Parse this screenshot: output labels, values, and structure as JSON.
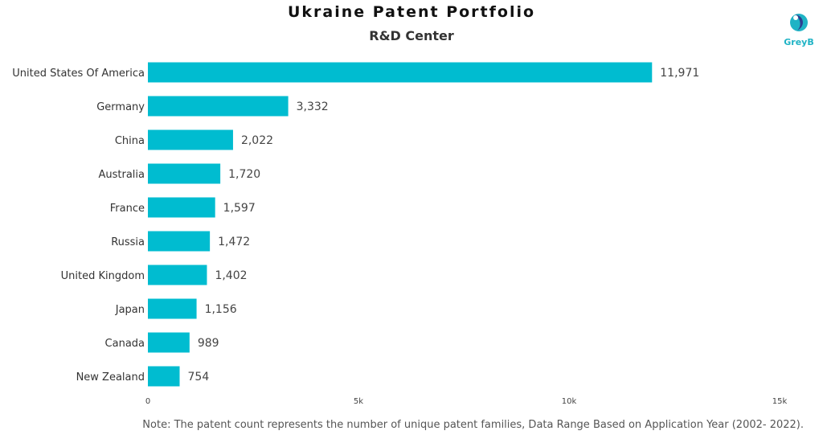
{
  "colors": {
    "bar": "#00bcd0",
    "logo": "#1fb3c5"
  },
  "logo": {
    "text": "GreyB",
    "icon": "greyb-logo-icon"
  },
  "note": "Note: The patent count represents the number of unique patent families, Data Range Based on Application Year (2002- 2022).",
  "chart_data": {
    "type": "bar",
    "orientation": "horizontal",
    "title": "Ukraine Patent Portfolio",
    "subtitle": "R&D Center",
    "categories": [
      "United States Of America",
      "Germany",
      "China",
      "Australia",
      "France",
      "Russia",
      "United Kingdom",
      "Japan",
      "Canada",
      "New Zealand"
    ],
    "values": [
      11971,
      3332,
      2022,
      1720,
      1597,
      1472,
      1402,
      1156,
      989,
      754
    ],
    "value_labels": [
      "11,971",
      "3,332",
      "2,022",
      "1,720",
      "1,597",
      "1,472",
      "1,402",
      "1,156",
      "989",
      "754"
    ],
    "xlim": [
      0,
      15000
    ],
    "x_ticks": [
      0,
      5000,
      10000,
      15000
    ],
    "x_tick_labels": [
      "0",
      "5k",
      "10k",
      "15k"
    ],
    "grid": false,
    "legend": "none"
  }
}
